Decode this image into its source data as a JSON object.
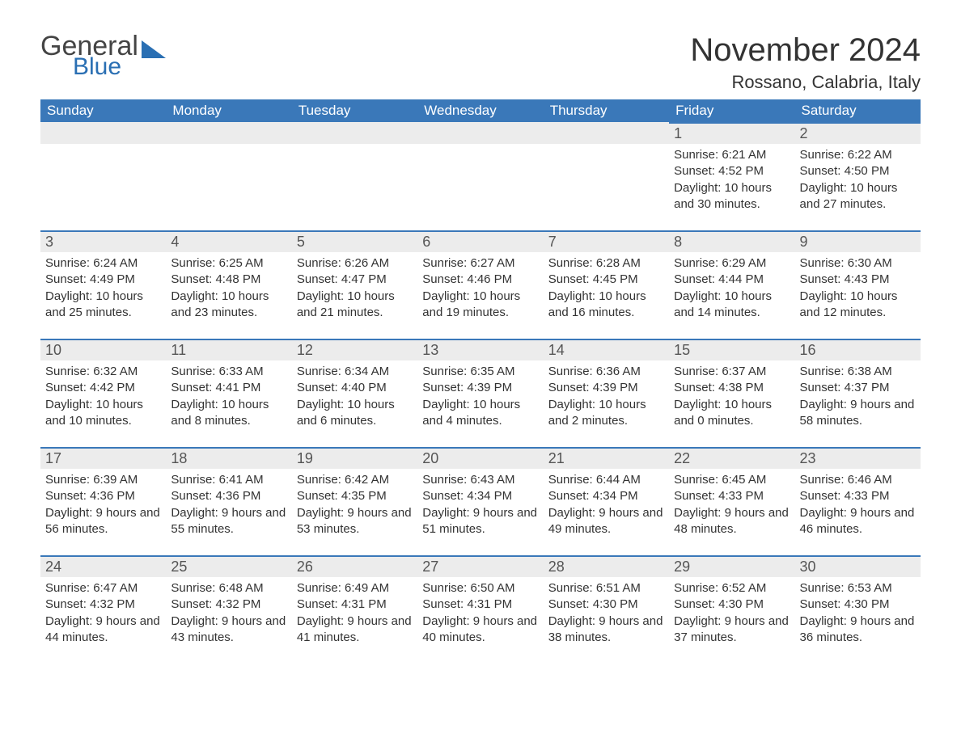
{
  "logo": {
    "text_general": "General",
    "text_blue": "Blue",
    "mark_color": "#2a6fb3"
  },
  "title": "November 2024",
  "location": "Rossano, Calabria, Italy",
  "colors": {
    "header_bg": "#3a78b9",
    "header_text": "#ffffff",
    "daynum_bg": "#ececec",
    "row_border": "#3a78b9",
    "body_text": "#333333",
    "page_bg": "#ffffff"
  },
  "typography": {
    "month_title_fontsize": 40,
    "location_fontsize": 22,
    "weekday_fontsize": 17,
    "daynum_fontsize": 18,
    "detail_fontsize": 15
  },
  "weekdays": [
    "Sunday",
    "Monday",
    "Tuesday",
    "Wednesday",
    "Thursday",
    "Friday",
    "Saturday"
  ],
  "grid": [
    [
      {
        "empty": true
      },
      {
        "empty": true
      },
      {
        "empty": true
      },
      {
        "empty": true
      },
      {
        "empty": true
      },
      {
        "day": "1",
        "sunrise": "6:21 AM",
        "sunset": "4:52 PM",
        "daylight": "10 hours and 30 minutes."
      },
      {
        "day": "2",
        "sunrise": "6:22 AM",
        "sunset": "4:50 PM",
        "daylight": "10 hours and 27 minutes."
      }
    ],
    [
      {
        "day": "3",
        "sunrise": "6:24 AM",
        "sunset": "4:49 PM",
        "daylight": "10 hours and 25 minutes."
      },
      {
        "day": "4",
        "sunrise": "6:25 AM",
        "sunset": "4:48 PM",
        "daylight": "10 hours and 23 minutes."
      },
      {
        "day": "5",
        "sunrise": "6:26 AM",
        "sunset": "4:47 PM",
        "daylight": "10 hours and 21 minutes."
      },
      {
        "day": "6",
        "sunrise": "6:27 AM",
        "sunset": "4:46 PM",
        "daylight": "10 hours and 19 minutes."
      },
      {
        "day": "7",
        "sunrise": "6:28 AM",
        "sunset": "4:45 PM",
        "daylight": "10 hours and 16 minutes."
      },
      {
        "day": "8",
        "sunrise": "6:29 AM",
        "sunset": "4:44 PM",
        "daylight": "10 hours and 14 minutes."
      },
      {
        "day": "9",
        "sunrise": "6:30 AM",
        "sunset": "4:43 PM",
        "daylight": "10 hours and 12 minutes."
      }
    ],
    [
      {
        "day": "10",
        "sunrise": "6:32 AM",
        "sunset": "4:42 PM",
        "daylight": "10 hours and 10 minutes."
      },
      {
        "day": "11",
        "sunrise": "6:33 AM",
        "sunset": "4:41 PM",
        "daylight": "10 hours and 8 minutes."
      },
      {
        "day": "12",
        "sunrise": "6:34 AM",
        "sunset": "4:40 PM",
        "daylight": "10 hours and 6 minutes."
      },
      {
        "day": "13",
        "sunrise": "6:35 AM",
        "sunset": "4:39 PM",
        "daylight": "10 hours and 4 minutes."
      },
      {
        "day": "14",
        "sunrise": "6:36 AM",
        "sunset": "4:39 PM",
        "daylight": "10 hours and 2 minutes."
      },
      {
        "day": "15",
        "sunrise": "6:37 AM",
        "sunset": "4:38 PM",
        "daylight": "10 hours and 0 minutes."
      },
      {
        "day": "16",
        "sunrise": "6:38 AM",
        "sunset": "4:37 PM",
        "daylight": "9 hours and 58 minutes."
      }
    ],
    [
      {
        "day": "17",
        "sunrise": "6:39 AM",
        "sunset": "4:36 PM",
        "daylight": "9 hours and 56 minutes."
      },
      {
        "day": "18",
        "sunrise": "6:41 AM",
        "sunset": "4:36 PM",
        "daylight": "9 hours and 55 minutes."
      },
      {
        "day": "19",
        "sunrise": "6:42 AM",
        "sunset": "4:35 PM",
        "daylight": "9 hours and 53 minutes."
      },
      {
        "day": "20",
        "sunrise": "6:43 AM",
        "sunset": "4:34 PM",
        "daylight": "9 hours and 51 minutes."
      },
      {
        "day": "21",
        "sunrise": "6:44 AM",
        "sunset": "4:34 PM",
        "daylight": "9 hours and 49 minutes."
      },
      {
        "day": "22",
        "sunrise": "6:45 AM",
        "sunset": "4:33 PM",
        "daylight": "9 hours and 48 minutes."
      },
      {
        "day": "23",
        "sunrise": "6:46 AM",
        "sunset": "4:33 PM",
        "daylight": "9 hours and 46 minutes."
      }
    ],
    [
      {
        "day": "24",
        "sunrise": "6:47 AM",
        "sunset": "4:32 PM",
        "daylight": "9 hours and 44 minutes."
      },
      {
        "day": "25",
        "sunrise": "6:48 AM",
        "sunset": "4:32 PM",
        "daylight": "9 hours and 43 minutes."
      },
      {
        "day": "26",
        "sunrise": "6:49 AM",
        "sunset": "4:31 PM",
        "daylight": "9 hours and 41 minutes."
      },
      {
        "day": "27",
        "sunrise": "6:50 AM",
        "sunset": "4:31 PM",
        "daylight": "9 hours and 40 minutes."
      },
      {
        "day": "28",
        "sunrise": "6:51 AM",
        "sunset": "4:30 PM",
        "daylight": "9 hours and 38 minutes."
      },
      {
        "day": "29",
        "sunrise": "6:52 AM",
        "sunset": "4:30 PM",
        "daylight": "9 hours and 37 minutes."
      },
      {
        "day": "30",
        "sunrise": "6:53 AM",
        "sunset": "4:30 PM",
        "daylight": "9 hours and 36 minutes."
      }
    ]
  ],
  "labels": {
    "sunrise": "Sunrise:",
    "sunset": "Sunset:",
    "daylight": "Daylight:"
  }
}
